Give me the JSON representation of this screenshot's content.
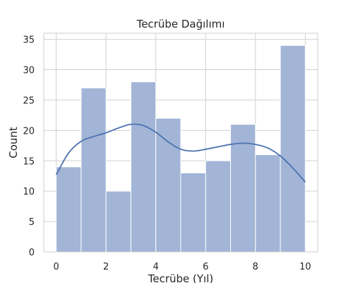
{
  "chart_data": {
    "type": "bar",
    "subtype": "histogram",
    "title": "Tecrübe Dağılımı",
    "xlabel": "Tecrübe (Yıl)",
    "ylabel": "Count",
    "bin_edges": [
      0,
      1,
      2,
      3,
      4,
      5,
      6,
      7,
      8,
      9,
      10
    ],
    "values": [
      14,
      27,
      10,
      28,
      22,
      13,
      15,
      21,
      16,
      34
    ],
    "xlim": [
      -0.5,
      10.5
    ],
    "ylim": [
      0,
      36
    ],
    "xticks": [
      0,
      2,
      4,
      6,
      8,
      10
    ],
    "yticks": [
      0,
      5,
      10,
      15,
      20,
      25,
      30,
      35
    ],
    "kde": {
      "x": [
        0,
        0.5,
        1,
        1.5,
        2,
        2.5,
        3,
        3.5,
        4,
        4.5,
        5,
        5.5,
        6,
        6.5,
        7,
        7.5,
        8,
        8.5,
        9,
        9.5,
        10
      ],
      "y": [
        12.7,
        16.3,
        18.2,
        19.0,
        19.6,
        20.4,
        21.0,
        20.8,
        19.7,
        18.1,
        16.9,
        16.6,
        16.9,
        17.3,
        17.7,
        17.9,
        17.7,
        17.1,
        15.8,
        13.8,
        11.5
      ]
    },
    "grid": true,
    "colors": {
      "bar": "#a2b5d7",
      "bar_edge": "#ffffff",
      "kde": "#4c72b0",
      "grid": "#d0d0d0",
      "frame": "#cccccc"
    }
  }
}
